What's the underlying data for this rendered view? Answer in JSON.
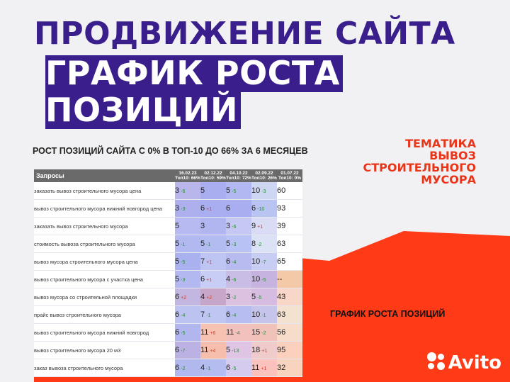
{
  "header": {
    "line1": "ПРОДВИЖЕНИЕ САЙТА",
    "line2": "ГРАФИК РОСТА",
    "line3": "ПОЗИЦИЙ"
  },
  "subtitle": "РОСТ ПОЗИЦИЙ САЙТА С 0% В ТОП-10 ДО 66% ЗА 6 МЕСЯЦЕВ",
  "theme": [
    "ТЕМАТИКА",
    "ВЫВОЗ",
    "СТРОИТЕЛЬНОГО",
    "МУСОРА"
  ],
  "growth_label": "ГРАФИК РОСТА ПОЗИЦИЙ",
  "table": {
    "query_header": "Запросы",
    "columns": [
      {
        "date": "16.02.23",
        "top": "Топ10: 66%"
      },
      {
        "date": "02.12.22",
        "top": "Топ10: 59%"
      },
      {
        "date": "04.10.22",
        "top": "Топ10: 72%"
      },
      {
        "date": "02.09.22",
        "top": "Топ10: 26%"
      },
      {
        "date": "01.07.22",
        "top": "Топ10: 0%"
      }
    ],
    "rows": [
      {
        "q": "заказать вывоз строительного мусора цена",
        "cells": [
          [
            "3",
            "-6",
            "up"
          ],
          [
            "5",
            "",
            ""
          ],
          [
            "5",
            "-5",
            "up"
          ],
          [
            "10",
            "-3",
            "up"
          ],
          [
            "60",
            "",
            ""
          ]
        ]
      },
      {
        "q": "вывоз строительного мусора нижний новгород цена",
        "cells": [
          [
            "3",
            "-3",
            "up"
          ],
          [
            "6",
            "+1",
            "down"
          ],
          [
            "6",
            "",
            ""
          ],
          [
            "6",
            "-10",
            "up"
          ],
          [
            "93",
            "",
            ""
          ]
        ]
      },
      {
        "q": "заказать вывоз строительного мусора",
        "cells": [
          [
            "5",
            "",
            ""
          ],
          [
            "3",
            "",
            ""
          ],
          [
            "3",
            "-6",
            "up"
          ],
          [
            "9",
            "+1",
            "down"
          ],
          [
            "39",
            "",
            ""
          ]
        ]
      },
      {
        "q": "стоимость вывоза строительного мусора",
        "cells": [
          [
            "5",
            "-1",
            "up"
          ],
          [
            "5",
            "-1",
            "up"
          ],
          [
            "5",
            "-3",
            "up"
          ],
          [
            "8",
            "-2",
            "up"
          ],
          [
            "63",
            "",
            ""
          ]
        ]
      },
      {
        "q": "вывоз мусора строительного мусора цена",
        "cells": [
          [
            "5",
            "-5",
            "up"
          ],
          [
            "7",
            "+1",
            "down"
          ],
          [
            "6",
            "-4",
            "up"
          ],
          [
            "10",
            "-7",
            "up"
          ],
          [
            "65",
            "",
            ""
          ]
        ]
      },
      {
        "q": "вывоз строительного мусора с участка цена",
        "cells": [
          [
            "5",
            "-3",
            "up"
          ],
          [
            "6",
            "+1",
            "down"
          ],
          [
            "4",
            "-6",
            "up"
          ],
          [
            "10",
            "-5",
            "up"
          ],
          [
            "--",
            "",
            ""
          ]
        ]
      },
      {
        "q": "вывоз мусора со строительной площадки",
        "cells": [
          [
            "6",
            "+2",
            "down"
          ],
          [
            "4",
            "+2",
            "down"
          ],
          [
            "3",
            "-2",
            "up"
          ],
          [
            "5",
            "-5",
            "up"
          ],
          [
            "43",
            "",
            ""
          ]
        ]
      },
      {
        "q": "прайс вывоз строительного мусора",
        "cells": [
          [
            "6",
            "-4",
            "up"
          ],
          [
            "7",
            "-1",
            "up"
          ],
          [
            "6",
            "-4",
            "up"
          ],
          [
            "10",
            "-1",
            "up"
          ],
          [
            "63",
            "",
            ""
          ]
        ]
      },
      {
        "q": "вывоз строительного мусора нижний новгород",
        "cells": [
          [
            "6",
            "-5",
            "up"
          ],
          [
            "11",
            "+6",
            "down"
          ],
          [
            "11",
            "-4",
            "up"
          ],
          [
            "15",
            "-2",
            "up"
          ],
          [
            "56",
            "",
            ""
          ]
        ]
      },
      {
        "q": "вывоз строительного мусора 20 м3",
        "cells": [
          [
            "6",
            "-7",
            "up"
          ],
          [
            "11",
            "+4",
            "down"
          ],
          [
            "5",
            "-13",
            "up"
          ],
          [
            "18",
            "+1",
            "down"
          ],
          [
            "95",
            "",
            ""
          ]
        ]
      },
      {
        "q": "заказ вывоза строительного мусора",
        "cells": [
          [
            "6",
            "-2",
            "up"
          ],
          [
            "4",
            "-1",
            "up"
          ],
          [
            "6",
            "-5",
            "up"
          ],
          [
            "11",
            "+1",
            "down"
          ],
          [
            "32",
            "",
            ""
          ]
        ]
      }
    ],
    "row_colors": [
      [
        "#b9b6ec",
        "#a9aef0",
        "#b2b8f2",
        "#cdd7f4",
        "#ffffff"
      ],
      [
        "#aeb0ee",
        "#a9aef0",
        "#a9aef0",
        "#b9c4f2",
        "#ffffff"
      ],
      [
        "#b7baf0",
        "#b2b6f0",
        "#c6c8f4",
        "#dadcf6",
        "#ffffff"
      ],
      [
        "#b2b8f0",
        "#b2bcf0",
        "#b8c2f4",
        "#dbe2f6",
        "#ffffff"
      ],
      [
        "#a9b1ee",
        "#bfc5f2",
        "#b7bbf0",
        "#c8cdf4",
        "#ffffff"
      ],
      [
        "#b3b8f0",
        "#c7cdf4",
        "#c9bde6",
        "#c7b3e0",
        "#f4c9a8"
      ],
      [
        "#c3b6e0",
        "#c6a6c9",
        "#dcc2e0",
        "#d6bce0",
        "#f8d7c9"
      ],
      [
        "#bcc3f0",
        "#c0c6f2",
        "#b7bdf0",
        "#c7c4ec",
        "#f4e2d0"
      ],
      [
        "#b1b6ee",
        "#f7c2b2",
        "#f2c1bd",
        "#f0c2ba",
        "#f7dcc9"
      ],
      [
        "#bcb1e3",
        "#f6bfad",
        "#e0c4e4",
        "#f0cbcb",
        "#fbd0bd"
      ],
      [
        "#b0b8ee",
        "#b4bcf0",
        "#d5cbee",
        "#fac1bd",
        "#f8d4bf"
      ]
    ]
  },
  "logo_text": "Avito"
}
